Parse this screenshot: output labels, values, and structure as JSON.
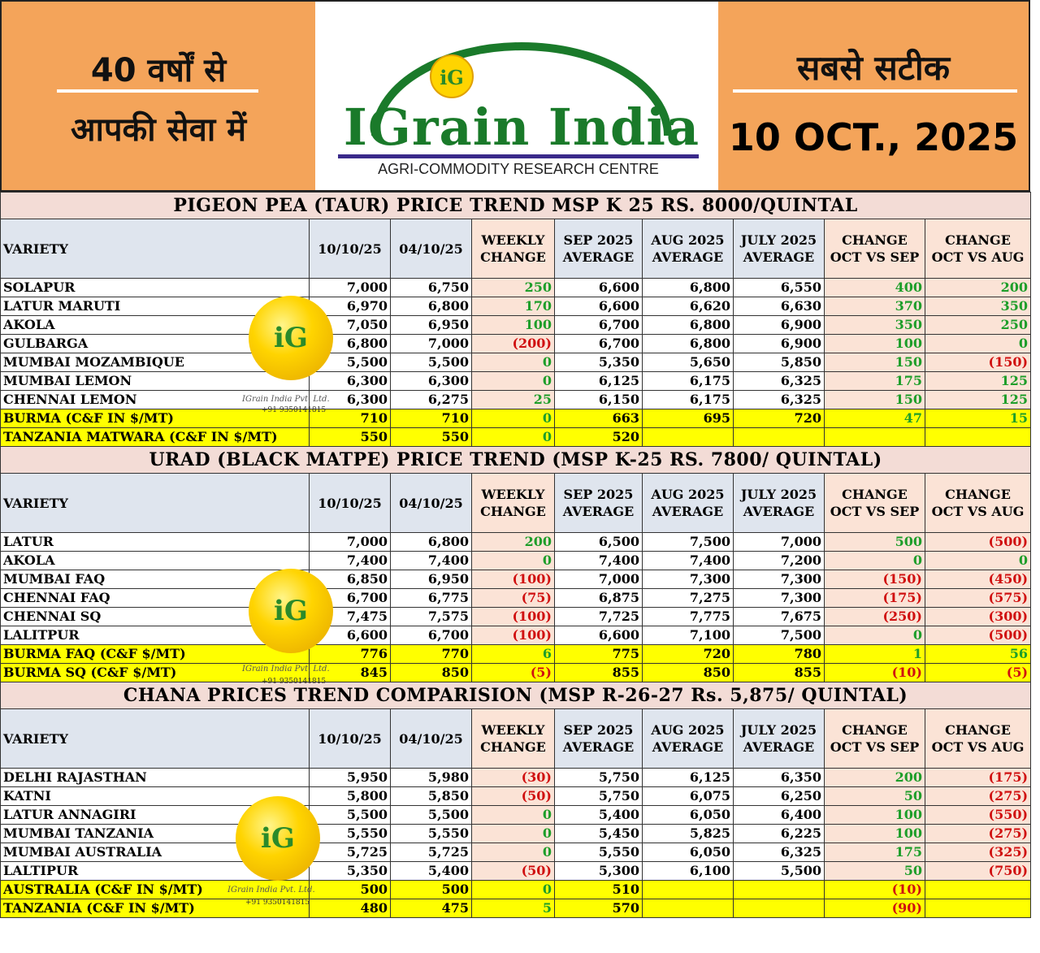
{
  "header": {
    "left_line1": "40 वर्षों से",
    "left_line2": "आपकी सेवा में",
    "logo_name": "IGrain India",
    "logo_subtitle": "AGRI-COMMODITY RESEARCH CENTRE",
    "logo_badge": "iG",
    "right_line1": "सबसे सटीक",
    "date": "10 OCT., 2025"
  },
  "columns": [
    "VARIETY",
    "10/10/25",
    "04/10/25",
    "WEEKLY CHANGE",
    "SEP 2025 AVERAGE",
    "AUG 2025 AVERAGE",
    "JULY 2025 AVERAGE",
    "CHANGE OCT VS SEP",
    "CHANGE OCT VS AUG"
  ],
  "watermark": {
    "badge": "iG",
    "company": "IGrain India Pvt. Ltd.",
    "phone": "+91 9350141815"
  },
  "colors": {
    "positive": "#1e9e2a",
    "negative": "#d01010",
    "highlight": "#ffff00",
    "title_bg": "#f3dcd6",
    "header_bg": "#f4a45a"
  },
  "sections": [
    {
      "title": "PIGEON PEA (TAUR) PRICE TREND MSP K 25 RS. 8000/QUINTAL",
      "rows": [
        [
          "SOLAPUR",
          "7,000",
          "6,750",
          "250",
          "6,600",
          "6,800",
          "6,550",
          "400",
          "200"
        ],
        [
          "LATUR MARUTI",
          "6,970",
          "6,800",
          "170",
          "6,600",
          "6,620",
          "6,630",
          "370",
          "350"
        ],
        [
          "AKOLA",
          "7,050",
          "6,950",
          "100",
          "6,700",
          "6,800",
          "6,900",
          "350",
          "250"
        ],
        [
          "GULBARGA",
          "6,800",
          "7,000",
          "(200)",
          "6,700",
          "6,800",
          "6,900",
          "100",
          "0"
        ],
        [
          "MUMBAI MOZAMBIQUE",
          "5,500",
          "5,500",
          "0",
          "5,350",
          "5,650",
          "5,850",
          "150",
          "(150)"
        ],
        [
          "MUMBAI LEMON",
          "6,300",
          "6,300",
          "0",
          "6,125",
          "6,175",
          "6,325",
          "175",
          "125"
        ],
        [
          "CHENNAI LEMON",
          "6,300",
          "6,275",
          "25",
          "6,150",
          "6,175",
          "6,325",
          "150",
          "125"
        ]
      ],
      "yellow_rows": [
        [
          "BURMA (C&F IN $/MT)",
          "710",
          "710",
          "0",
          "663",
          "695",
          "720",
          "47",
          "15"
        ],
        [
          "TANZANIA MATWARA (C&F IN $/MT)",
          "550",
          "550",
          "0",
          "520",
          "",
          "",
          "",
          ""
        ]
      ]
    },
    {
      "title": "URAD (BLACK MATPE) PRICE TREND (MSP K-25 RS. 7800/ QUINTAL)",
      "rows": [
        [
          "LATUR",
          "7,000",
          "6,800",
          "200",
          "6,500",
          "7,500",
          "7,000",
          "500",
          "(500)"
        ],
        [
          "AKOLA",
          "7,400",
          "7,400",
          "0",
          "7,400",
          "7,400",
          "7,200",
          "0",
          "0"
        ],
        [
          "MUMBAI FAQ",
          "6,850",
          "6,950",
          "(100)",
          "7,000",
          "7,300",
          "7,300",
          "(150)",
          "(450)"
        ],
        [
          "CHENNAI FAQ",
          "6,700",
          "6,775",
          "(75)",
          "6,875",
          "7,275",
          "7,300",
          "(175)",
          "(575)"
        ],
        [
          "CHENNAI SQ",
          "7,475",
          "7,575",
          "(100)",
          "7,725",
          "7,775",
          "7,675",
          "(250)",
          "(300)"
        ],
        [
          "LALITPUR",
          "6,600",
          "6,700",
          "(100)",
          "6,600",
          "7,100",
          "7,500",
          "0",
          "(500)"
        ]
      ],
      "yellow_rows": [
        [
          "BURMA FAQ (C&F $/MT)",
          "776",
          "770",
          "6",
          "775",
          "720",
          "780",
          "1",
          "56"
        ],
        [
          "BURMA SQ (C&F $/MT)",
          "845",
          "850",
          "(5)",
          "855",
          "850",
          "855",
          "(10)",
          "(5)"
        ]
      ]
    },
    {
      "title": "CHANA PRICES TREND COMPARISION (MSP R-26-27 Rs. 5,875/ QUINTAL)",
      "rows": [
        [
          "DELHI RAJASTHAN",
          "5,950",
          "5,980",
          "(30)",
          "5,750",
          "6,125",
          "6,350",
          "200",
          "(175)"
        ],
        [
          "KATNI",
          "5,800",
          "5,850",
          "(50)",
          "5,750",
          "6,075",
          "6,250",
          "50",
          "(275)"
        ],
        [
          "LATUR ANNAGIRI",
          "5,500",
          "5,500",
          "0",
          "5,400",
          "6,050",
          "6,400",
          "100",
          "(550)"
        ],
        [
          "MUMBAI TANZANIA",
          "5,550",
          "5,550",
          "0",
          "5,450",
          "5,825",
          "6,225",
          "100",
          "(275)"
        ],
        [
          "MUMBAI AUSTRALIA",
          "5,725",
          "5,725",
          "0",
          "5,550",
          "6,050",
          "6,325",
          "175",
          "(325)"
        ],
        [
          "LALTIPUR",
          "5,350",
          "5,400",
          "(50)",
          "5,300",
          "6,100",
          "5,500",
          "50",
          "(750)"
        ]
      ],
      "yellow_rows": [
        [
          "AUSTRALIA (C&F IN $/MT)",
          "500",
          "500",
          "0",
          "510",
          "",
          "",
          "(10)",
          ""
        ],
        [
          "TANZANIA (C&F IN $/MT)",
          "480",
          "475",
          "5",
          "570",
          "",
          "",
          "(90)",
          ""
        ]
      ]
    }
  ]
}
